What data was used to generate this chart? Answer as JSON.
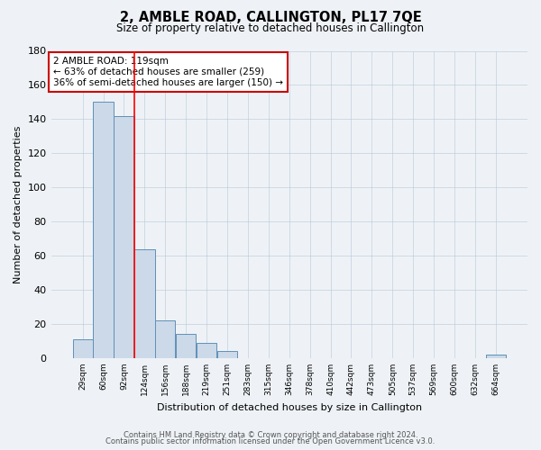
{
  "title": "2, AMBLE ROAD, CALLINGTON, PL17 7QE",
  "subtitle": "Size of property relative to detached houses in Callington",
  "xlabel": "Distribution of detached houses by size in Callington",
  "ylabel": "Number of detached properties",
  "bar_color": "#ccd9e8",
  "bar_edge_color": "#6090b8",
  "categories": [
    "29sqm",
    "60sqm",
    "92sqm",
    "124sqm",
    "156sqm",
    "188sqm",
    "219sqm",
    "251sqm",
    "283sqm",
    "315sqm",
    "346sqm",
    "378sqm",
    "410sqm",
    "442sqm",
    "473sqm",
    "505sqm",
    "537sqm",
    "569sqm",
    "600sqm",
    "632sqm",
    "664sqm"
  ],
  "values": [
    11,
    150,
    142,
    64,
    22,
    14,
    9,
    4,
    0,
    0,
    0,
    0,
    0,
    0,
    0,
    0,
    0,
    0,
    0,
    0,
    2
  ],
  "red_line_index": 3,
  "annotation_title": "2 AMBLE ROAD: 119sqm",
  "annotation_line1": "← 63% of detached houses are smaller (259)",
  "annotation_line2": "36% of semi-detached houses are larger (150) →",
  "ylim": [
    0,
    180
  ],
  "yticks": [
    0,
    20,
    40,
    60,
    80,
    100,
    120,
    140,
    160,
    180
  ],
  "footer1": "Contains HM Land Registry data © Crown copyright and database right 2024.",
  "footer2": "Contains public sector information licensed under the Open Government Licence v3.0.",
  "background_color": "#eef2f6"
}
